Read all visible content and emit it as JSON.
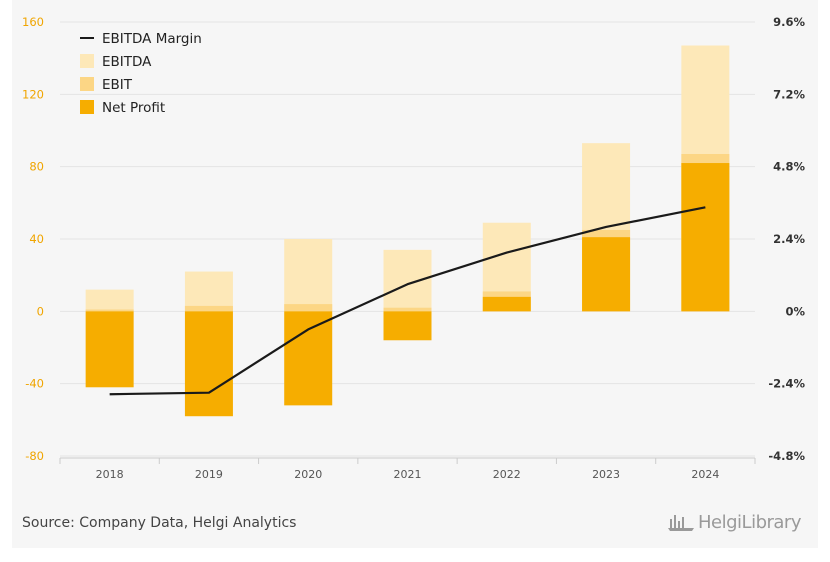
{
  "chart_data": {
    "type": "bar",
    "categories": [
      "2018",
      "2019",
      "2020",
      "2021",
      "2022",
      "2023",
      "2024"
    ],
    "series": [
      {
        "name": "EBITDA",
        "values": [
          12,
          22,
          40,
          34,
          49,
          93,
          147
        ],
        "color": "#fde8b8",
        "axis": "left"
      },
      {
        "name": "EBIT",
        "values": [
          1,
          3,
          4,
          2,
          11,
          45,
          87
        ],
        "color": "#fcd685",
        "axis": "left"
      },
      {
        "name": "Net Profit",
        "values": [
          -42,
          -58,
          -52,
          -16,
          8,
          41,
          82
        ],
        "color": "#f6ad00",
        "axis": "left"
      },
      {
        "name": "EBITDA Margin",
        "type": "line",
        "values": [
          -2.75,
          -2.7,
          -0.6,
          0.9,
          1.95,
          2.8,
          3.45
        ],
        "color": "#1a1a1a",
        "axis": "right",
        "unit": "%"
      }
    ],
    "y_left": {
      "ticks": [
        -80,
        -40,
        0,
        40,
        80,
        120,
        160
      ],
      "tick_labels": [
        "-80",
        "-40",
        "0",
        "40",
        "80",
        "120",
        "160"
      ],
      "range": [
        -80,
        160
      ],
      "color": "#f0a500"
    },
    "y_right": {
      "ticks": [
        -4.8,
        -2.4,
        0,
        2.4,
        4.8,
        7.2,
        9.6
      ],
      "tick_labels": [
        "-4.8%",
        "-2.4%",
        "0%",
        "2.4%",
        "4.8%",
        "7.2%",
        "9.6%"
      ],
      "range": [
        -4.8,
        9.6
      ]
    },
    "grid": "horizontal",
    "legend": {
      "placement": "top-left",
      "order": [
        "EBITDA Margin",
        "EBITDA",
        "EBIT",
        "Net Profit"
      ]
    },
    "title": ""
  },
  "footer": {
    "source": "Source: Company Data, Helgi Analytics",
    "brand": "HelgiLibrary",
    "brand_icon": "bar-chart-logo-icon"
  }
}
